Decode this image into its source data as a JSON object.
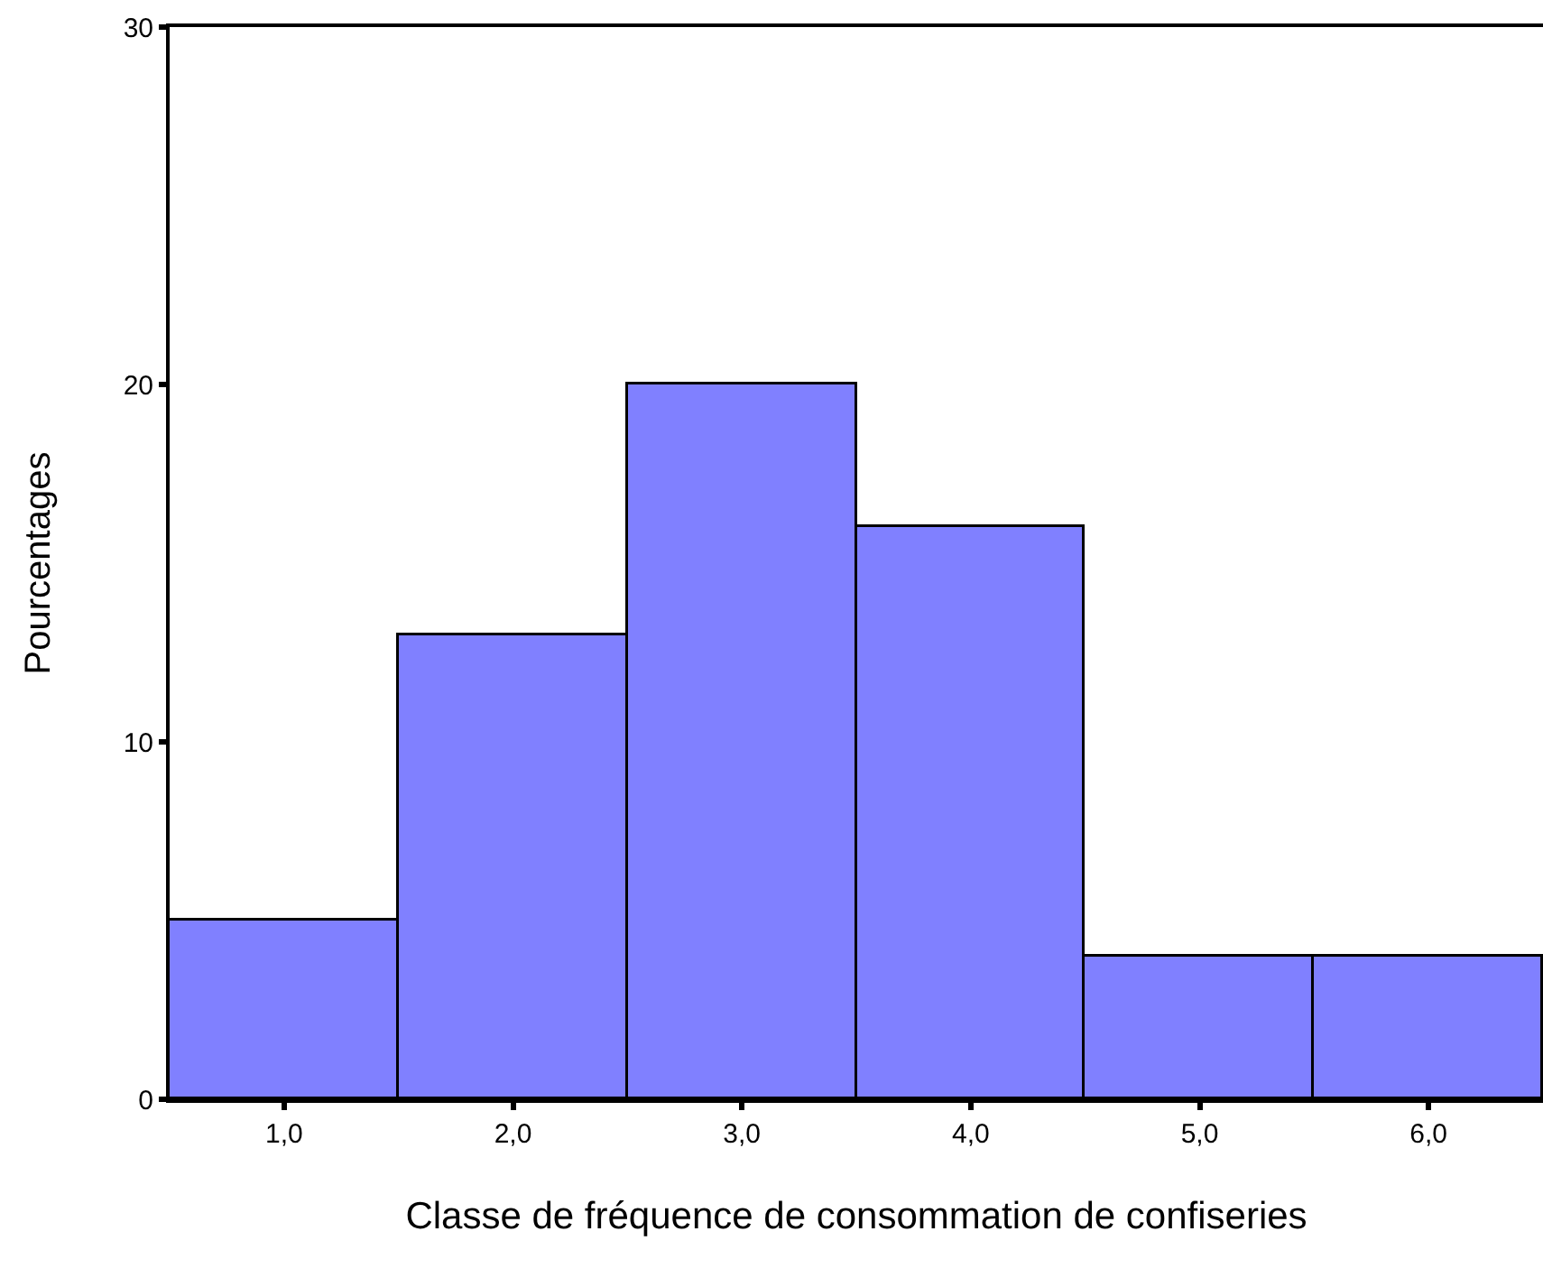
{
  "chart_data": {
    "type": "histogram",
    "xlabel": "Classe de fréquence de consommation de confiseries",
    "ylabel": "Pourcentages",
    "bins": [
      0.5,
      1.5,
      2.5,
      3.5,
      4.5,
      5.5,
      6.5
    ],
    "values": [
      5,
      13,
      20,
      16,
      4,
      4
    ],
    "color": "#8080ff",
    "xlim": [
      0.5,
      6.5
    ],
    "xticks": [
      {
        "value": 1,
        "label": "1,0"
      },
      {
        "value": 2,
        "label": "2,0"
      },
      {
        "value": 3,
        "label": "3,0"
      },
      {
        "value": 4,
        "label": "4,0"
      },
      {
        "value": 5,
        "label": "5,0"
      },
      {
        "value": 6,
        "label": "6,0"
      }
    ],
    "ylim": [
      0,
      30
    ],
    "yticks": [
      0,
      10,
      20,
      30
    ]
  }
}
